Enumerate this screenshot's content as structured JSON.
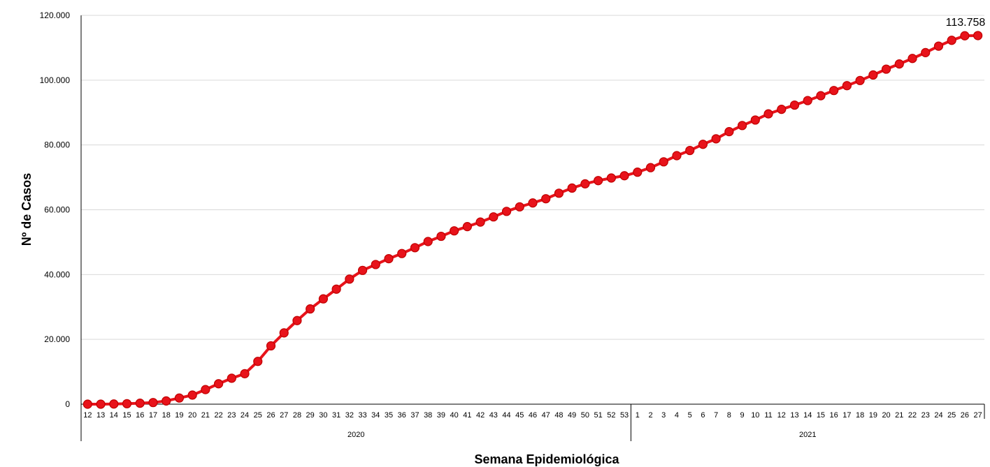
{
  "chart_data": {
    "type": "line",
    "xlabel": "Semana Epidemiológica",
    "ylabel": "Nº de Casos",
    "ylim": [
      0,
      120000
    ],
    "yticks": [
      "0",
      "20.000",
      "40.000",
      "60.000",
      "80.000",
      "100.000",
      "120.000"
    ],
    "grid": true,
    "legend": "none",
    "colors": {
      "line": "#e8131b",
      "marker": "#e8131b",
      "marker_edge": "#c00000",
      "grid": "#d9d9d9",
      "axis": "#000000"
    },
    "groups": [
      {
        "year": "2020",
        "weeks": [
          "12",
          "13",
          "14",
          "15",
          "16",
          "17",
          "18",
          "19",
          "20",
          "21",
          "22",
          "23",
          "24",
          "25",
          "26",
          "27",
          "28",
          "29",
          "30",
          "31",
          "32",
          "33",
          "34",
          "35",
          "36",
          "37",
          "38",
          "39",
          "40",
          "41",
          "42",
          "43",
          "44",
          "45",
          "46",
          "47",
          "48",
          "49",
          "50",
          "51",
          "52",
          "53"
        ]
      },
      {
        "year": "2021",
        "weeks": [
          "1",
          "2",
          "3",
          "4",
          "5",
          "6",
          "7",
          "8",
          "9",
          "10",
          "11",
          "12",
          "13",
          "14",
          "15",
          "16",
          "17",
          "18",
          "19",
          "20",
          "21",
          "22",
          "23",
          "24",
          "25",
          "26",
          "27"
        ]
      }
    ],
    "series": [
      {
        "values": [
          0,
          0,
          50,
          150,
          300,
          500,
          1000,
          1900,
          2800,
          4500,
          6300,
          8000,
          9400,
          13200,
          18000,
          22000,
          25800,
          29400,
          32500,
          35500,
          38600,
          41300,
          43100,
          44900,
          46500,
          48300,
          50200,
          51800,
          53500,
          54800,
          56200,
          57800,
          59500,
          60900,
          62100,
          63400,
          65100,
          66700,
          68000,
          69000,
          69800,
          70500,
          71600,
          73000,
          74800,
          76700,
          78300,
          80200,
          81900,
          84100,
          86000,
          87700,
          89600,
          91000,
          92300,
          93700,
          95200,
          96800,
          98300,
          99900,
          101600,
          103400,
          105000,
          106700,
          108500,
          110500,
          112300,
          113700,
          113758
        ]
      }
    ],
    "annotations": [
      {
        "index": 68,
        "text": "113.758"
      }
    ]
  }
}
